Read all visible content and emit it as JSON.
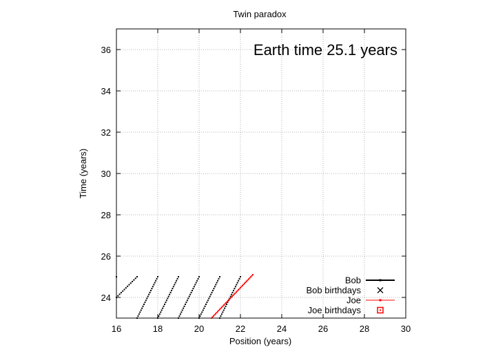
{
  "chart_data": {
    "type": "scatter",
    "title": "Twin paradox",
    "xlabel": "Position (years)",
    "ylabel": "Time (years)",
    "xlim": [
      16,
      30
    ],
    "ylim": [
      23,
      37
    ],
    "xticks": [
      16,
      18,
      20,
      22,
      24,
      26,
      28,
      30
    ],
    "yticks": [
      24,
      26,
      28,
      30,
      32,
      34,
      36
    ],
    "grid": true,
    "legend_position": "bottom-right",
    "annotation": "Earth time 25.1 years",
    "series": [
      {
        "name": "Bob",
        "color": "#000000",
        "marker": "dot",
        "segments": [
          {
            "x0": 16.0,
            "y0": 24.0,
            "x1": 17.0,
            "y1": 25.0
          },
          {
            "x0": 17.0,
            "y0": 23.0,
            "x1": 18.0,
            "y1": 25.0
          },
          {
            "x0": 18.0,
            "y0": 23.0,
            "x1": 19.0,
            "y1": 25.0
          },
          {
            "x0": 19.0,
            "y0": 23.0,
            "x1": 20.0,
            "y1": 25.0
          },
          {
            "x0": 20.0,
            "y0": 23.0,
            "x1": 21.0,
            "y1": 25.0
          },
          {
            "x0": 21.0,
            "y0": 23.0,
            "x1": 22.0,
            "y1": 25.0
          }
        ],
        "points": [
          {
            "x": 16.0,
            "y": 25.0
          }
        ]
      },
      {
        "name": "Bob birthdays",
        "color": "#000000",
        "marker": "cross"
      },
      {
        "name": "Joe",
        "color": "#ff0000",
        "marker": "dot",
        "segments": [
          {
            "x0": 20.6,
            "y0": 23.0,
            "x1": 22.6,
            "y1": 25.1
          }
        ]
      },
      {
        "name": "Joe birthdays",
        "color": "#ff0000",
        "marker": "square"
      }
    ]
  }
}
